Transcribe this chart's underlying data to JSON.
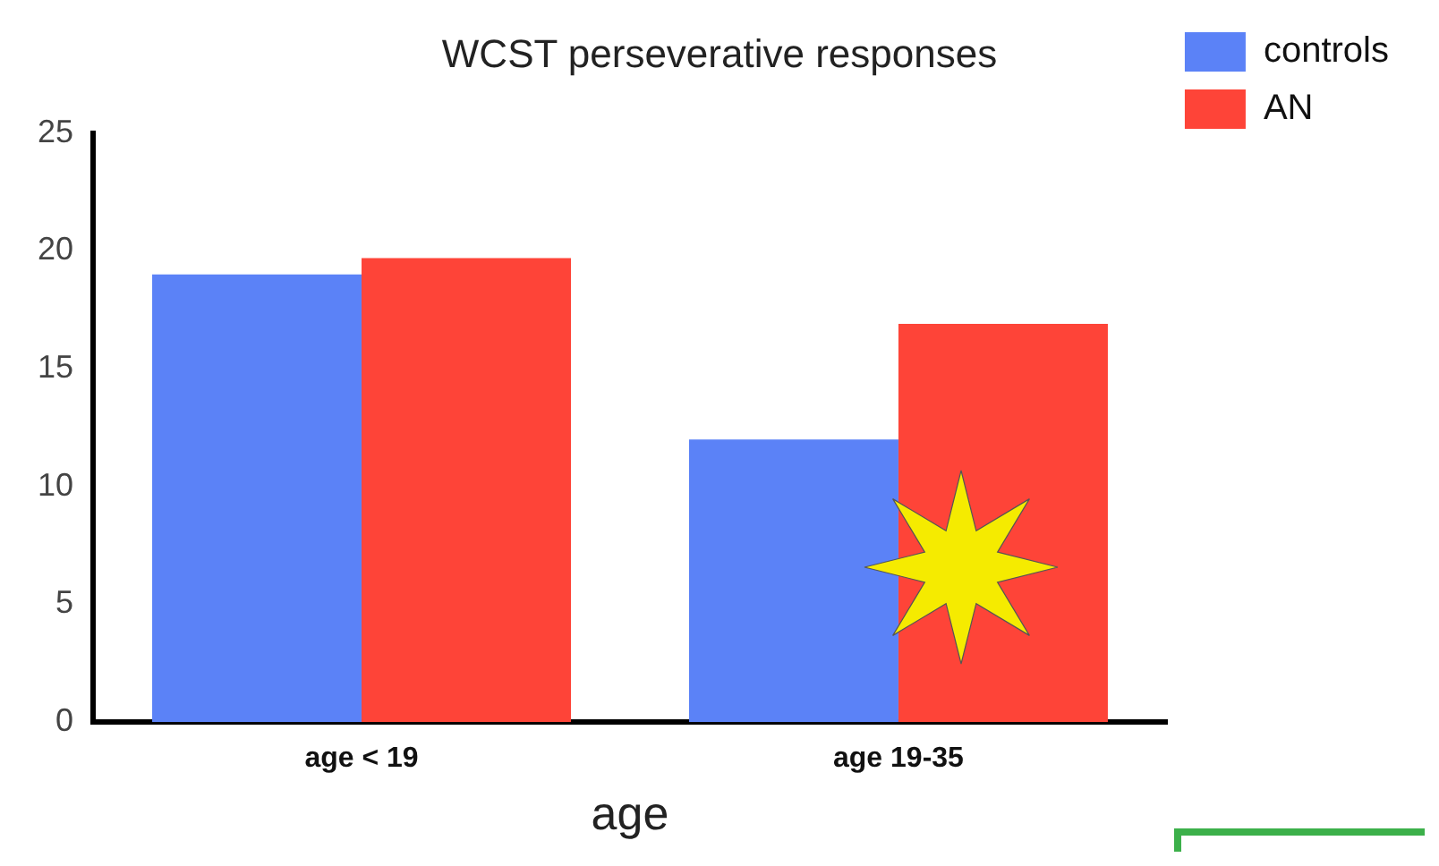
{
  "chart_data": {
    "type": "bar",
    "title": "WCST perseverative responses",
    "xlabel": "age",
    "categories": [
      "age < 19",
      "age 19-35"
    ],
    "series": [
      {
        "name": "controls",
        "color": "#5b82f7",
        "values": [
          19.0,
          12.0
        ]
      },
      {
        "name": "AN",
        "color": "#fe4438",
        "values": [
          19.7,
          16.9
        ]
      }
    ],
    "ylim": [
      0,
      25
    ],
    "yticks": [
      0,
      5,
      10,
      15,
      20,
      25
    ],
    "grid": false,
    "legend": "top right"
  }
}
